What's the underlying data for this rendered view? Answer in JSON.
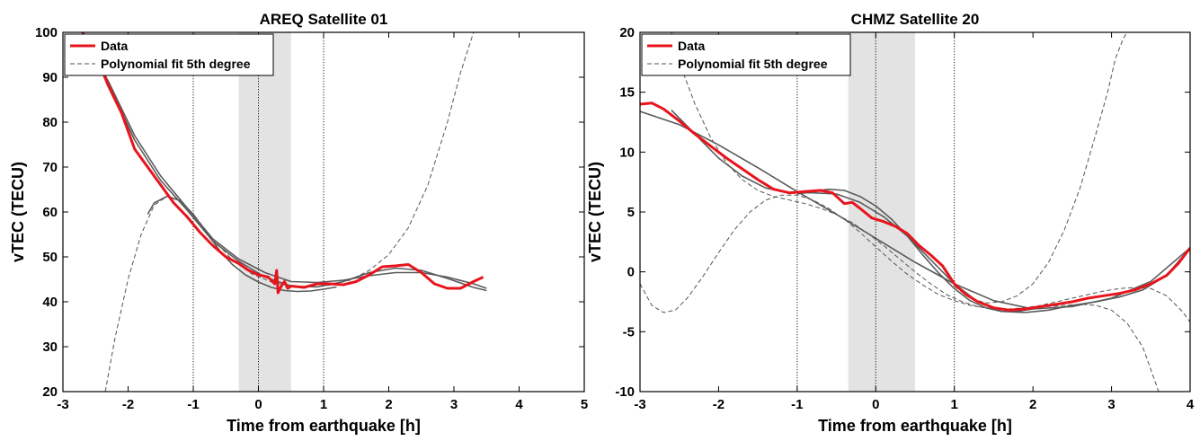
{
  "chart_data": [
    {
      "type": "line",
      "title": "AREQ Satellite 01",
      "xlabel": "Time from earthquake [h]",
      "ylabel": "vTEC (TECU)",
      "xlim": [
        -3,
        5
      ],
      "ylim": [
        20,
        100
      ],
      "xticks": [
        "-3",
        "-2",
        "-1",
        "0",
        "1",
        "2",
        "3",
        "4",
        "5"
      ],
      "yticks": [
        "20",
        "30",
        "40",
        "50",
        "60",
        "70",
        "80",
        "90",
        "100"
      ],
      "shaded_region": [
        -0.3,
        0.5
      ],
      "vertical_lines": [
        -1,
        0,
        1
      ],
      "legend": {
        "position": "top-left",
        "entries": [
          "Data",
          "Polynomial fit 5th degree"
        ]
      },
      "colors": {
        "data": "#e8141c",
        "fit_solid": "#5a5a5a",
        "fit_dashed": "#555555",
        "shade": "#e3e3e3"
      },
      "series": [
        {
          "name": "Data",
          "style": "red-solid",
          "x": [
            -2.7,
            -2.5,
            -2.3,
            -2.1,
            -1.9,
            -1.7,
            -1.5,
            -1.3,
            -1.1,
            -0.9,
            -0.7,
            -0.5,
            -0.3,
            -0.15,
            0.0,
            0.15,
            0.25,
            0.28,
            0.3,
            0.35,
            0.4,
            0.45,
            0.5,
            0.7,
            0.9,
            1.1,
            1.3,
            1.5,
            1.7,
            1.9,
            2.1,
            2.3,
            2.5,
            2.7,
            2.9,
            3.1,
            3.3,
            3.45
          ],
          "y": [
            100,
            95,
            88,
            82,
            74,
            70,
            66,
            62,
            59,
            55.5,
            52.5,
            50,
            48.5,
            47,
            46,
            45.5,
            44,
            47,
            42,
            43.5,
            44.5,
            43,
            43.5,
            43.2,
            44,
            44,
            43.8,
            44.5,
            46,
            47.8,
            48,
            48.3,
            46.5,
            44,
            43,
            43,
            44.5,
            45.5
          ]
        },
        {
          "style": "gray-solid",
          "x": [
            -2.7,
            -2.3,
            -1.9,
            -1.5,
            -1.1,
            -0.7,
            -0.3,
            0.1,
            0.5,
            0.9,
            1.3,
            1.7,
            2.1,
            2.5,
            2.9,
            3.3,
            3.5
          ],
          "y": [
            99.5,
            89,
            77,
            68,
            61,
            54,
            49.5,
            46.5,
            44.5,
            44.3,
            44.8,
            45.8,
            46.5,
            46.5,
            45.5,
            44,
            43
          ]
        },
        {
          "style": "gray-solid",
          "x": [
            -2.7,
            -2.3,
            -1.9,
            -1.5,
            -1.1,
            -0.7,
            -0.3,
            0.1,
            0.5,
            0.9,
            1.3,
            1.7,
            2.1,
            2.5,
            2.9,
            3.3,
            3.5
          ],
          "y": [
            99.5,
            88.5,
            76,
            67,
            60.5,
            53.5,
            49,
            45.5,
            43.5,
            43.3,
            44.5,
            46.5,
            47.5,
            47,
            45.2,
            43.2,
            42.5
          ]
        },
        {
          "style": "gray-solid",
          "x": [
            -1.7,
            -1.6,
            -1.4,
            -1.2,
            -1.0,
            -0.8,
            -0.6,
            -0.4,
            -0.2,
            0.0,
            0.2,
            0.4,
            0.6,
            0.8,
            1.0,
            1.2
          ],
          "y": [
            59.5,
            62,
            63.5,
            62.5,
            59.5,
            55.5,
            51.5,
            48.3,
            46,
            44.4,
            43.2,
            42.5,
            42.3,
            42.4,
            42.8,
            43.3
          ]
        },
        {
          "name": "Polynomial fit 5th degree",
          "style": "gray-dashed",
          "x": [
            -2.35,
            -2.2,
            -2.0,
            -1.8,
            -1.6,
            -1.4,
            -1.2,
            -1.0,
            -0.7,
            -0.4,
            -0.1,
            0.2,
            0.5,
            0.8,
            1.1,
            1.4,
            1.7,
            2.0,
            2.3,
            2.6,
            2.9,
            3.1,
            3.3
          ],
          "y": [
            20,
            32,
            45,
            55,
            61.5,
            63.5,
            62.5,
            59.5,
            54,
            49.3,
            46.2,
            44.4,
            43.5,
            43.3,
            43.7,
            44.8,
            47,
            50.5,
            56.5,
            66,
            80,
            91,
            100
          ]
        }
      ]
    },
    {
      "type": "line",
      "title": "CHMZ Satellite 20",
      "xlabel": "Time from earthquake [h]",
      "ylabel": "vTEC (TECU)",
      "xlim": [
        -3,
        4
      ],
      "ylim": [
        -10,
        20
      ],
      "xticks": [
        "-3",
        "-2",
        "-1",
        "0",
        "1",
        "2",
        "3",
        "4"
      ],
      "yticks": [
        "-10",
        "-5",
        "0",
        "5",
        "10",
        "15",
        "20"
      ],
      "shaded_region": [
        -0.35,
        0.5
      ],
      "vertical_lines": [
        -1,
        0,
        1
      ],
      "legend": {
        "position": "top-left",
        "entries": [
          "Data",
          "Polynomial fit 5th degree"
        ]
      },
      "colors": {
        "data": "#e8141c",
        "fit_solid": "#5a5a5a",
        "fit_dashed": "#555555",
        "shade": "#e3e3e3"
      },
      "series": [
        {
          "name": "Data",
          "style": "red-solid",
          "x": [
            -3.0,
            -2.85,
            -2.7,
            -2.5,
            -2.3,
            -2.1,
            -1.9,
            -1.7,
            -1.5,
            -1.3,
            -1.1,
            -0.9,
            -0.7,
            -0.55,
            -0.4,
            -0.3,
            -0.2,
            -0.05,
            0.1,
            0.25,
            0.4,
            0.55,
            0.7,
            0.85,
            1.0,
            1.15,
            1.3,
            1.5,
            1.7,
            1.9,
            2.1,
            2.3,
            2.5,
            2.7,
            2.9,
            3.1,
            3.3,
            3.5,
            3.7,
            3.85,
            4.0
          ],
          "y": [
            14,
            14.1,
            13.6,
            12.6,
            11.5,
            10.5,
            9.5,
            8.6,
            7.7,
            6.9,
            6.6,
            6.7,
            6.8,
            6.6,
            5.7,
            5.8,
            5.3,
            4.5,
            4.2,
            3.8,
            3.2,
            2.2,
            1.4,
            0.5,
            -1.0,
            -1.9,
            -2.5,
            -3.0,
            -3.2,
            -3.1,
            -2.9,
            -2.7,
            -2.5,
            -2.2,
            -2.0,
            -1.8,
            -1.5,
            -1.0,
            -0.3,
            0.7,
            2.0
          ]
        },
        {
          "style": "gray-solid",
          "x": [
            -3.0,
            -2.5,
            -2.0,
            -1.5,
            -1.0,
            -0.5,
            0.0,
            0.5,
            1.0,
            1.5,
            2.0,
            2.5,
            3.0,
            3.5,
            4.0
          ],
          "y": [
            13.4,
            12.3,
            10.6,
            8.7,
            6.7,
            4.8,
            2.8,
            0.8,
            -1.0,
            -2.4,
            -3.1,
            -2.9,
            -2.2,
            -0.8,
            2.0
          ]
        },
        {
          "style": "gray-solid",
          "x": [
            -2.6,
            -2.3,
            -2.0,
            -1.7,
            -1.4,
            -1.1,
            -0.8,
            -0.5,
            -0.2,
            0.1,
            0.4,
            0.7,
            1.0,
            1.3,
            1.6,
            1.9,
            2.2,
            2.5,
            2.8,
            3.1,
            3.4,
            3.7,
            4.0
          ],
          "y": [
            13.5,
            11.5,
            9.5,
            8.0,
            7.0,
            6.6,
            6.6,
            6.5,
            5.8,
            4.6,
            3.0,
            1.0,
            -1.0,
            -2.5,
            -3.3,
            -3.4,
            -3.2,
            -2.8,
            -2.5,
            -2.1,
            -1.5,
            -0.3,
            2.0
          ]
        },
        {
          "style": "gray-solid",
          "x": [
            -1.0,
            -0.8,
            -0.6,
            -0.4,
            -0.2,
            0.0,
            0.2,
            0.4,
            0.6,
            0.8,
            1.0,
            1.2,
            1.4,
            1.6,
            1.8,
            2.0,
            2.2
          ],
          "y": [
            6.5,
            6.7,
            6.9,
            6.8,
            6.3,
            5.5,
            4.4,
            3.0,
            1.4,
            -0.1,
            -1.4,
            -2.4,
            -3.0,
            -3.3,
            -3.3,
            -3.1,
            -2.8
          ]
        },
        {
          "name": "Polynomial fit 5th degree",
          "style": "gray-dashed",
          "x": [
            -3.0,
            -2.85,
            -2.7,
            -2.55,
            -2.4,
            -2.2,
            -2.0,
            -1.8,
            -1.6,
            -1.4,
            -1.2,
            -1.0,
            -0.8,
            -0.6,
            -0.4,
            -0.2,
            0.0,
            0.2,
            0.4,
            0.6,
            0.8,
            1.0,
            1.2,
            1.4,
            1.6,
            1.8,
            2.0,
            2.2,
            2.4,
            2.6,
            2.8,
            3.0,
            3.2,
            3.4,
            3.6
          ],
          "y": [
            -1,
            -2.8,
            -3.4,
            -3.2,
            -2.2,
            -0.4,
            1.6,
            3.5,
            5.0,
            6.0,
            6.4,
            6.4,
            6.0,
            5.3,
            4.4,
            3.3,
            2.1,
            0.9,
            -0.2,
            -1.1,
            -1.9,
            -2.4,
            -2.8,
            -3.0,
            -3.1,
            -3.1,
            -3.0,
            -2.9,
            -2.8,
            -2.7,
            -2.8,
            -3.2,
            -4.3,
            -6.3,
            -10
          ]
        },
        {
          "style": "gray-dashed",
          "x": [
            -2.6,
            -2.5,
            -2.3,
            -2.1,
            -1.9,
            -1.7,
            -1.5,
            -1.3,
            -1.1,
            -0.9,
            -0.7,
            -0.5,
            -0.3,
            -0.1,
            0.1,
            0.3,
            0.5,
            0.7,
            0.9,
            1.1,
            1.3,
            1.5,
            1.7,
            1.9,
            2.1,
            2.3,
            2.5,
            2.7,
            2.9,
            3.1,
            3.3,
            3.5,
            3.7,
            3.9,
            4.0
          ],
          "y": [
            20,
            17.5,
            14.0,
            11.2,
            9.1,
            7.7,
            6.8,
            6.3,
            6.0,
            5.7,
            5.3,
            4.8,
            4.1,
            3.2,
            2.2,
            1.1,
            0.0,
            -1.0,
            -1.9,
            -2.5,
            -2.9,
            -3.1,
            -3.1,
            -3.0,
            -2.8,
            -2.5,
            -2.2,
            -1.9,
            -1.6,
            -1.4,
            -1.3,
            -1.4,
            -2.0,
            -3.3,
            -4.2
          ]
        },
        {
          "style": "gray-dashed",
          "x": [
            1.0,
            1.2,
            1.4,
            1.6,
            1.8,
            2.0,
            2.2,
            2.4,
            2.6,
            2.8,
            2.95,
            3.05,
            3.15,
            3.2
          ],
          "y": [
            -1.2,
            -2.2,
            -2.6,
            -2.5,
            -2.0,
            -1.0,
            0.8,
            3.5,
            7.0,
            11.5,
            15.0,
            17.8,
            19.5,
            20
          ]
        }
      ]
    }
  ]
}
